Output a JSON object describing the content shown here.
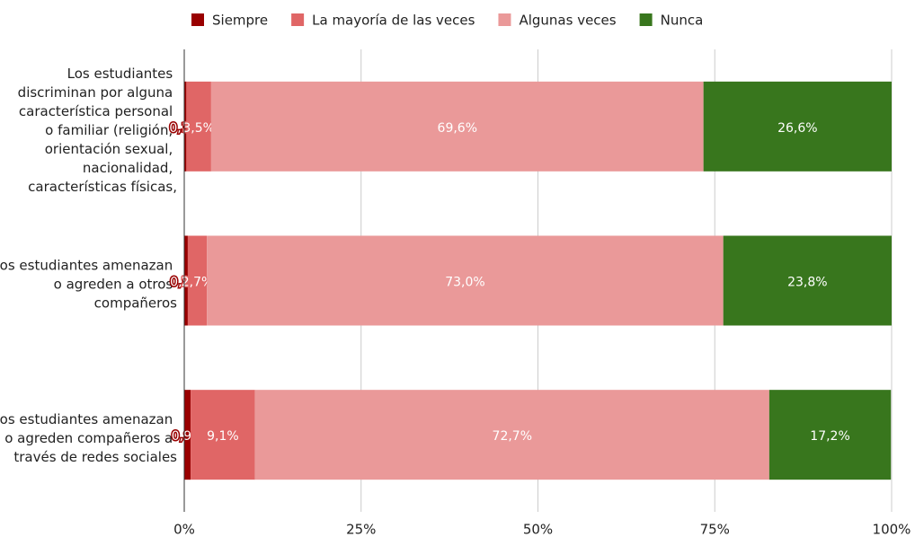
{
  "chart_data": {
    "type": "stacked-bar-horizontal",
    "categories": [
      "Los estudiantes discriminan por alguna característica personal o familiar (religión, orientación sexual, nacionalidad, características físicas,",
      "Los estudiantes amenazan o agreden a otros compañeros",
      "Los estudiantes amenazan o agreden compañeros a través de redes sociales"
    ],
    "series": [
      {
        "name": "Siempre",
        "color": "#990000",
        "values": [
          0.3,
          0.5,
          0.9
        ],
        "value_labels": [
          "0,3%",
          "0,5%",
          "0,9%"
        ]
      },
      {
        "name": "La mayoría de las veces",
        "color": "#e06666",
        "values": [
          3.5,
          2.7,
          9.1
        ],
        "value_labels": [
          "3,5%",
          "2,7%",
          "9,1%"
        ]
      },
      {
        "name": "Algunas veces",
        "color": "#ea9999",
        "values": [
          69.6,
          73.0,
          72.7
        ],
        "value_labels": [
          "69,6%",
          "73,0%",
          "72,7%"
        ]
      },
      {
        "name": "Nunca",
        "color": "#38761d",
        "values": [
          26.6,
          23.8,
          17.2
        ],
        "value_labels": [
          "26,6%",
          "23,8%",
          "17,2%"
        ]
      }
    ],
    "xlim": [
      0,
      100
    ],
    "xticks": [
      {
        "value": 0,
        "label": "0%"
      },
      {
        "value": 25,
        "label": "25%"
      },
      {
        "value": 50,
        "label": "50%"
      },
      {
        "value": 75,
        "label": "75%"
      },
      {
        "value": 100,
        "label": "100%"
      }
    ],
    "grid": true,
    "legend": "top"
  }
}
